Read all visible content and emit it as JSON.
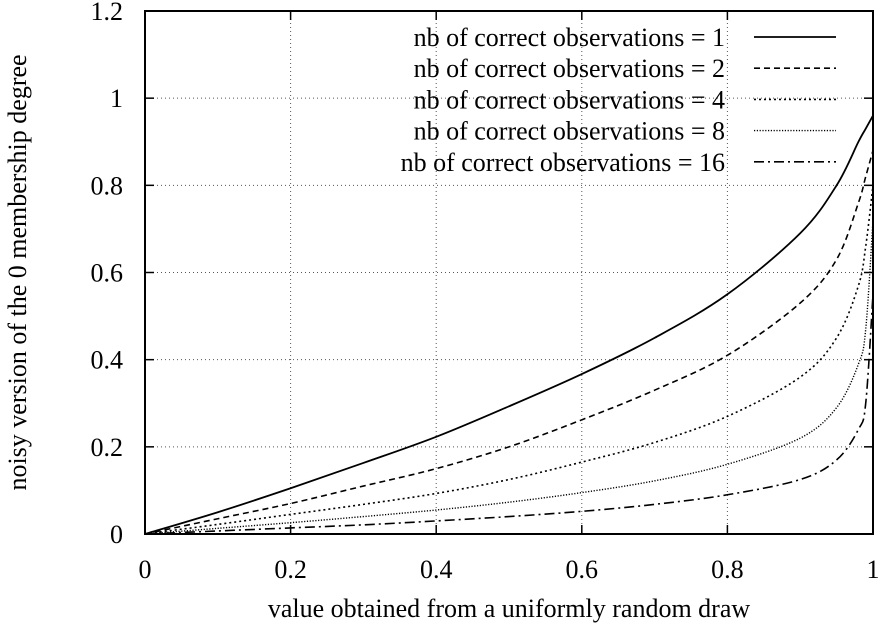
{
  "chart_data": {
    "type": "line",
    "xlabel": "value obtained from a uniformly random draw",
    "ylabel": "noisy version of the 0 membership degree",
    "xlim": [
      0,
      1
    ],
    "ylim": [
      0,
      1.2
    ],
    "x_ticks": [
      "0",
      "0.2",
      "0.4",
      "0.6",
      "0.8",
      "1"
    ],
    "y_ticks": [
      "0",
      "0.2",
      "0.4",
      "0.6",
      "0.8",
      "1",
      "1.2"
    ],
    "grid": true,
    "legend_position": "top-right",
    "x": [
      0,
      0.1,
      0.2,
      0.3,
      0.4,
      0.5,
      0.6,
      0.7,
      0.8,
      0.9,
      0.95,
      0.98,
      0.99,
      1.0
    ],
    "series": [
      {
        "name": "nb of correct observations = 1",
        "dash": "solid",
        "values": [
          0,
          0.05,
          0.105,
          0.163,
          0.223,
          0.293,
          0.367,
          0.45,
          0.55,
          0.69,
          0.8,
          0.9,
          0.93,
          0.96
        ]
      },
      {
        "name": "nb of correct observations = 2",
        "dash": "dashed",
        "values": [
          0,
          0.035,
          0.07,
          0.11,
          0.15,
          0.2,
          0.262,
          0.33,
          0.41,
          0.53,
          0.63,
          0.76,
          0.82,
          0.88
        ]
      },
      {
        "name": "nb of correct observations = 4",
        "dash": "dotted",
        "values": [
          0,
          0.022,
          0.045,
          0.068,
          0.093,
          0.125,
          0.165,
          0.21,
          0.27,
          0.36,
          0.45,
          0.57,
          0.66,
          0.8
        ]
      },
      {
        "name": "nb of correct observations = 8",
        "dash": "fine-dotted",
        "values": [
          0,
          0.013,
          0.026,
          0.04,
          0.055,
          0.073,
          0.095,
          0.122,
          0.16,
          0.22,
          0.29,
          0.39,
          0.47,
          0.72
        ]
      },
      {
        "name": "nb of correct observations = 16",
        "dash": "dash-dot",
        "values": [
          0,
          0.007,
          0.014,
          0.021,
          0.03,
          0.04,
          0.052,
          0.068,
          0.09,
          0.125,
          0.17,
          0.24,
          0.3,
          0.55
        ]
      }
    ]
  }
}
